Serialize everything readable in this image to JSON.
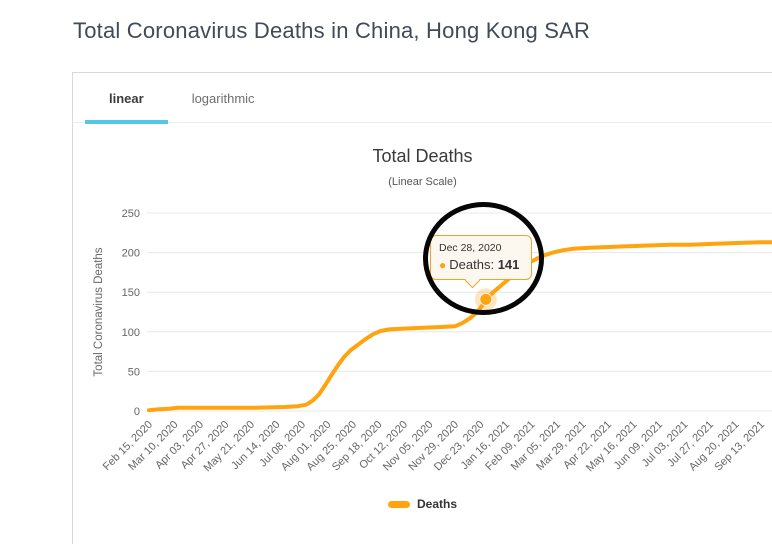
{
  "page": {
    "title": "Total Coronavirus Deaths in China, Hong Kong SAR"
  },
  "tabs": [
    {
      "label": "linear",
      "active": true
    },
    {
      "label": "logarithmic",
      "active": false
    }
  ],
  "chart_data": {
    "type": "line",
    "title": "Total Deaths",
    "subtitle": "(Linear Scale)",
    "xlabel": "",
    "ylabel": "Total Coronavirus Deaths",
    "ylim": [
      0,
      250
    ],
    "yticks": [
      0,
      50,
      100,
      150,
      200,
      250
    ],
    "grid": "horizontal",
    "legend_position": "bottom",
    "xtick_interval_days": 24,
    "xtick_labels": [
      "Feb 15, 2020",
      "Mar 10, 2020",
      "Apr 03, 2020",
      "Apr 27, 2020",
      "May 21, 2020",
      "Jun 14, 2020",
      "Jul 08, 2020",
      "Aug 01, 2020",
      "Aug 25, 2020",
      "Sep 18, 2020",
      "Oct 12, 2020",
      "Nov 05, 2020",
      "Nov 29, 2020",
      "Dec 23, 2020",
      "Jan 16, 2021",
      "Feb 09, 2021",
      "Mar 05, 2021",
      "Mar 29, 2021",
      "Apr 22, 2021",
      "May 16, 2021",
      "Jun 09, 2021",
      "Jul 03, 2021",
      "Jul 27, 2021",
      "Aug 20, 2021",
      "Sep 13, 2021"
    ],
    "series": [
      {
        "name": "Deaths",
        "color": "#ffa30e",
        "points": [
          [
            0,
            1
          ],
          [
            8,
            2
          ],
          [
            20,
            3
          ],
          [
            27,
            4
          ],
          [
            60,
            4
          ],
          [
            100,
            4
          ],
          [
            128,
            5
          ],
          [
            140,
            6
          ],
          [
            148,
            8
          ],
          [
            154,
            13
          ],
          [
            160,
            21
          ],
          [
            166,
            33
          ],
          [
            172,
            46
          ],
          [
            178,
            58
          ],
          [
            184,
            69
          ],
          [
            190,
            77
          ],
          [
            197,
            84
          ],
          [
            204,
            91
          ],
          [
            211,
            97
          ],
          [
            218,
            101
          ],
          [
            226,
            103
          ],
          [
            240,
            104
          ],
          [
            258,
            105
          ],
          [
            275,
            106
          ],
          [
            288,
            107
          ],
          [
            295,
            111
          ],
          [
            302,
            117
          ],
          [
            308,
            124
          ],
          [
            313,
            132
          ],
          [
            317,
            141
          ],
          [
            324,
            150
          ],
          [
            331,
            158
          ],
          [
            338,
            166
          ],
          [
            345,
            174
          ],
          [
            352,
            181
          ],
          [
            359,
            188
          ],
          [
            366,
            193
          ],
          [
            373,
            197
          ],
          [
            380,
            200
          ],
          [
            390,
            203
          ],
          [
            400,
            205
          ],
          [
            415,
            206
          ],
          [
            430,
            207
          ],
          [
            450,
            208
          ],
          [
            470,
            209
          ],
          [
            490,
            210
          ],
          [
            510,
            210
          ],
          [
            530,
            211
          ],
          [
            550,
            212
          ],
          [
            576,
            213
          ],
          [
            587,
            213
          ]
        ]
      }
    ]
  },
  "tooltip": {
    "date": "Dec 28, 2020",
    "label": "Deaths:",
    "value": "141",
    "point": {
      "day": 317,
      "value": 141
    }
  },
  "legend": {
    "label": "Deaths"
  },
  "annotation": {
    "type": "hand-drawn-circle",
    "color": "#000000"
  },
  "colors": {
    "line": "#ffa30e",
    "tab_underline": "#55c6e8",
    "grid": "#e4e8ec",
    "tooltip_border": "#f0a32b",
    "tooltip_bg": "#fdf8ef",
    "axis_text": "#666666"
  }
}
